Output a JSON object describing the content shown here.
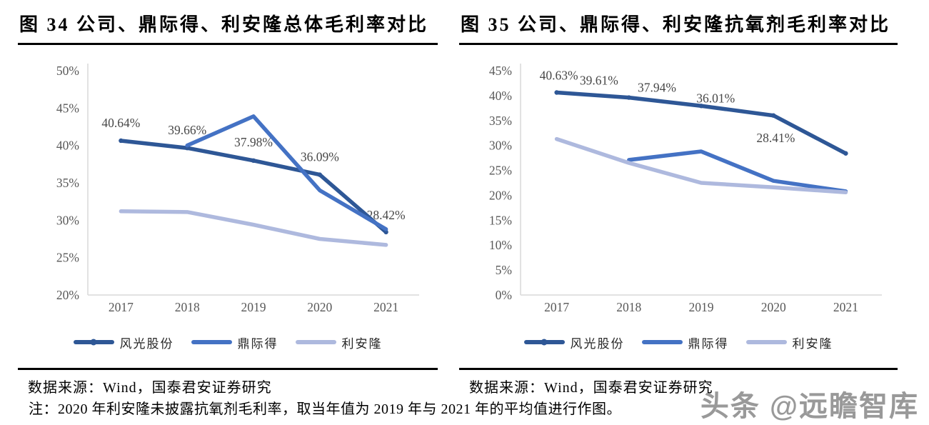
{
  "page": {
    "note": "注：2020 年利安隆未披露抗氧剂毛利率，取当年值为 2019 年与 2021 年的平均值进行作图。",
    "watermark": "头条 @远瞻智库"
  },
  "chart_data": [
    {
      "type": "line",
      "title": "图 34 公司、鼎际得、利安隆总体毛利率对比",
      "source": "数据来源：Wind，国泰君安证券研究",
      "categories": [
        "2017",
        "2018",
        "2019",
        "2020",
        "2021"
      ],
      "ylim": [
        20,
        50
      ],
      "yticks": [
        "20%",
        "25%",
        "30%",
        "35%",
        "40%",
        "45%",
        "50%"
      ],
      "grid": false,
      "legend_position": "bottom",
      "axis_color": "#d9d9d9",
      "series": [
        {
          "name": "风光股份",
          "color": "#2e5796",
          "marker": true,
          "values": [
            40.64,
            39.66,
            37.98,
            36.09,
            28.42
          ],
          "labels": [
            "40.64%",
            "39.66%",
            "37.98%",
            "36.09%",
            "28.42%"
          ],
          "label_dx": [
            0,
            0,
            0,
            0,
            0
          ],
          "label_dy": [
            -25,
            -25,
            -26,
            -25,
            -24
          ]
        },
        {
          "name": "鼎际得",
          "color": "#4472c4",
          "marker": false,
          "values": [
            null,
            40.0,
            43.9,
            34.0,
            28.8
          ]
        },
        {
          "name": "利安隆",
          "color": "#aeb9de",
          "marker": false,
          "values": [
            31.2,
            31.1,
            29.4,
            27.5,
            26.7
          ]
        }
      ]
    },
    {
      "type": "line",
      "title": "图 35 公司、鼎际得、利安隆抗氧剂毛利率对比",
      "source": "数据来源：Wind，国泰君安证券研究",
      "categories": [
        "2017",
        "2018",
        "2019",
        "2020",
        "2021"
      ],
      "ylim": [
        0,
        45
      ],
      "yticks": [
        "0%",
        "5%",
        "10%",
        "15%",
        "20%",
        "25%",
        "30%",
        "35%",
        "40%",
        "45%"
      ],
      "grid": false,
      "legend_position": "bottom",
      "axis_color": "#d9d9d9",
      "series": [
        {
          "name": "风光股份",
          "color": "#2e5796",
          "marker": true,
          "values": [
            40.63,
            39.61,
            37.94,
            36.01,
            28.41
          ],
          "labels": [
            "40.63%",
            "39.61%",
            "37.94%",
            "36.01%",
            "28.41%"
          ],
          "label_dx": [
            3,
            -42,
            -62,
            -81,
            -98
          ],
          "label_dy": [
            -24,
            -24,
            -26,
            -24,
            -22
          ]
        },
        {
          "name": "鼎际得",
          "color": "#4472c4",
          "marker": false,
          "values": [
            null,
            27.1,
            28.8,
            22.9,
            20.8
          ]
        },
        {
          "name": "利安隆",
          "color": "#aeb9de",
          "marker": false,
          "values": [
            31.3,
            26.5,
            22.5,
            21.6,
            20.6
          ]
        }
      ]
    }
  ]
}
